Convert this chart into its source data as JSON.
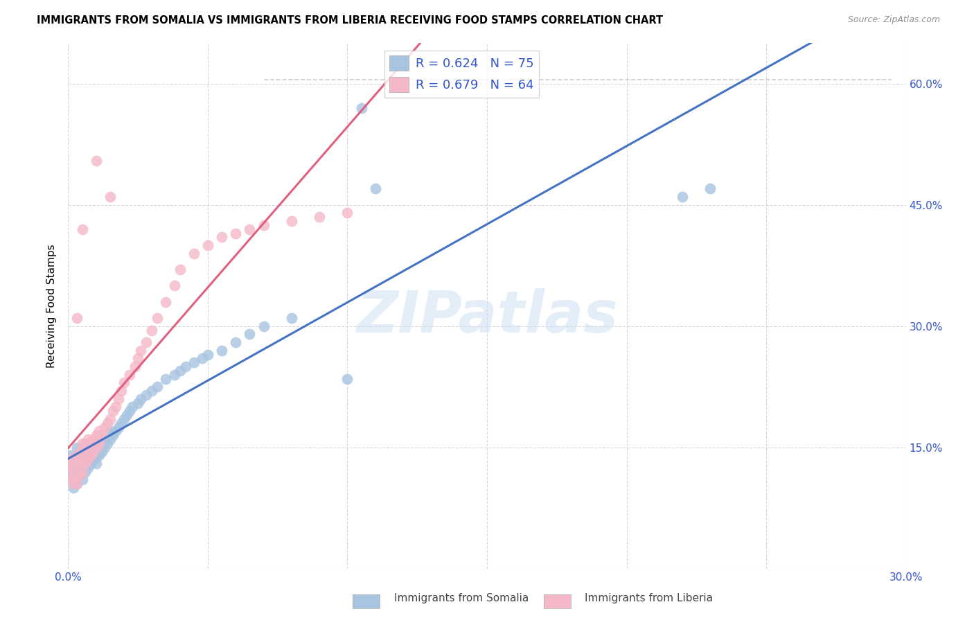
{
  "title": "IMMIGRANTS FROM SOMALIA VS IMMIGRANTS FROM LIBERIA RECEIVING FOOD STAMPS CORRELATION CHART",
  "source": "Source: ZipAtlas.com",
  "ylabel": "Receiving Food Stamps",
  "xlim": [
    0.0,
    0.3
  ],
  "ylim": [
    0.0,
    0.65
  ],
  "somalia_color": "#a8c4e0",
  "liberia_color": "#f4b8c8",
  "somalia_line_color": "#4472c4",
  "liberia_line_color": "#e06080",
  "diagonal_line_color": "#c8c8c8",
  "legend_label_somalia": "R = 0.624   N = 75",
  "legend_label_liberia": "R = 0.679   N = 64",
  "watermark": "ZIPatlas",
  "bottom_label_somalia": "Immigrants from Somalia",
  "bottom_label_liberia": "Immigrants from Liberia",
  "legend_text_color": "#3355cc",
  "tick_color": "#3355cc",
  "somalia_x": [
    0.001,
    0.001,
    0.001,
    0.002,
    0.002,
    0.002,
    0.002,
    0.003,
    0.003,
    0.003,
    0.003,
    0.003,
    0.004,
    0.004,
    0.004,
    0.004,
    0.005,
    0.005,
    0.005,
    0.005,
    0.005,
    0.006,
    0.006,
    0.006,
    0.006,
    0.007,
    0.007,
    0.007,
    0.008,
    0.008,
    0.008,
    0.009,
    0.009,
    0.01,
    0.01,
    0.01,
    0.011,
    0.011,
    0.012,
    0.012,
    0.013,
    0.013,
    0.014,
    0.015,
    0.015,
    0.016,
    0.017,
    0.018,
    0.019,
    0.02,
    0.021,
    0.022,
    0.023,
    0.025,
    0.026,
    0.028,
    0.03,
    0.032,
    0.035,
    0.038,
    0.04,
    0.042,
    0.045,
    0.048,
    0.05,
    0.055,
    0.06,
    0.065,
    0.07,
    0.08,
    0.1,
    0.11,
    0.22,
    0.23,
    0.105
  ],
  "somalia_y": [
    0.12,
    0.13,
    0.14,
    0.1,
    0.11,
    0.115,
    0.125,
    0.105,
    0.12,
    0.13,
    0.14,
    0.15,
    0.115,
    0.125,
    0.135,
    0.145,
    0.11,
    0.12,
    0.13,
    0.14,
    0.15,
    0.12,
    0.13,
    0.14,
    0.15,
    0.125,
    0.135,
    0.145,
    0.13,
    0.14,
    0.15,
    0.135,
    0.145,
    0.13,
    0.14,
    0.15,
    0.14,
    0.15,
    0.145,
    0.155,
    0.15,
    0.16,
    0.155,
    0.16,
    0.17,
    0.165,
    0.17,
    0.175,
    0.18,
    0.185,
    0.19,
    0.195,
    0.2,
    0.205,
    0.21,
    0.215,
    0.22,
    0.225,
    0.235,
    0.24,
    0.245,
    0.25,
    0.255,
    0.26,
    0.265,
    0.27,
    0.28,
    0.29,
    0.3,
    0.31,
    0.235,
    0.47,
    0.46,
    0.47,
    0.57
  ],
  "liberia_x": [
    0.001,
    0.001,
    0.001,
    0.002,
    0.002,
    0.002,
    0.002,
    0.003,
    0.003,
    0.003,
    0.003,
    0.004,
    0.004,
    0.004,
    0.005,
    0.005,
    0.005,
    0.005,
    0.006,
    0.006,
    0.006,
    0.007,
    0.007,
    0.007,
    0.008,
    0.008,
    0.009,
    0.009,
    0.01,
    0.01,
    0.011,
    0.011,
    0.012,
    0.013,
    0.014,
    0.015,
    0.016,
    0.017,
    0.018,
    0.019,
    0.02,
    0.022,
    0.024,
    0.025,
    0.026,
    0.028,
    0.03,
    0.032,
    0.035,
    0.038,
    0.04,
    0.045,
    0.05,
    0.055,
    0.06,
    0.065,
    0.07,
    0.08,
    0.09,
    0.1,
    0.003,
    0.005,
    0.01,
    0.015
  ],
  "liberia_y": [
    0.11,
    0.125,
    0.135,
    0.105,
    0.115,
    0.125,
    0.135,
    0.105,
    0.115,
    0.13,
    0.14,
    0.115,
    0.13,
    0.145,
    0.12,
    0.13,
    0.145,
    0.155,
    0.13,
    0.14,
    0.155,
    0.135,
    0.145,
    0.16,
    0.14,
    0.155,
    0.145,
    0.16,
    0.15,
    0.165,
    0.155,
    0.17,
    0.165,
    0.175,
    0.18,
    0.185,
    0.195,
    0.2,
    0.21,
    0.22,
    0.23,
    0.24,
    0.25,
    0.26,
    0.27,
    0.28,
    0.295,
    0.31,
    0.33,
    0.35,
    0.37,
    0.39,
    0.4,
    0.41,
    0.415,
    0.42,
    0.425,
    0.43,
    0.435,
    0.44,
    0.31,
    0.42,
    0.505,
    0.46
  ]
}
